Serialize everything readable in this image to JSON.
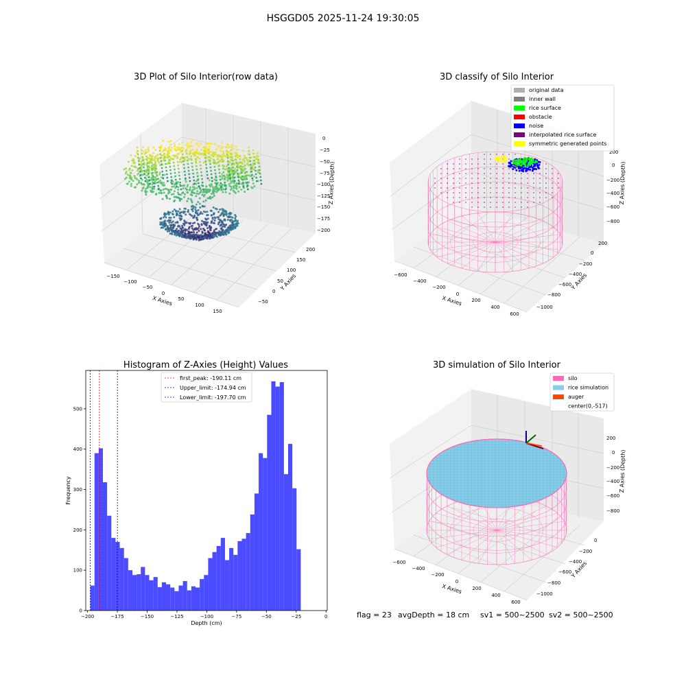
{
  "suptitle": "HSGGD05 2025-11-24 19:30:05",
  "footer": {
    "flag": "flag = 23",
    "avg_depth": "avgDepth = 18 cm",
    "sv1": "sv1 = 500~2500",
    "sv2": "sv2 = 500~2500"
  },
  "colors": {
    "hist_bar": "#4b4bff",
    "first_peak": "#ff0000",
    "limit_line": "#0000aa",
    "silo": "#ff69b4",
    "rice_sim": "#87ceeb",
    "auger": "#ff4500",
    "noise": "#0000ff",
    "rice_surface": "#00ff00",
    "obstacle": "#ff0000",
    "interpolated": "#800080",
    "symmetric": "#ffff00",
    "inner_wall": "#808080",
    "original": "#b0b0b0"
  },
  "chart_data": [
    {
      "type": "scatter",
      "title": "3D Plot of Silo Interior(row data)",
      "xlabel": "X Axies",
      "ylabel": "Y Axies",
      "zlabel": "Z Axies (Depth)",
      "x_ticks": [
        "−150",
        "−100",
        "−50",
        "0",
        "50",
        "100",
        "150"
      ],
      "y_ticks": [
        "−50",
        "0",
        "50",
        "100",
        "150",
        "200"
      ],
      "z_ticks": [
        "0",
        "−25",
        "−50",
        "−75",
        "−100",
        "−125",
        "−150",
        "−175",
        "−200"
      ],
      "xlim": [
        -175,
        175
      ],
      "ylim": [
        -75,
        225
      ],
      "zlim": [
        -205,
        0
      ],
      "colormap": "viridis"
    },
    {
      "type": "scatter",
      "title": "3D classify of Silo Interior",
      "xlabel": "X Axies",
      "ylabel": "Y Axies",
      "zlabel": "Z Axies (Depth)",
      "x_ticks": [
        "−600",
        "−400",
        "−200",
        "0",
        "200",
        "400",
        "600"
      ],
      "y_ticks": [
        "200",
        "0",
        "−200",
        "−400",
        "−600",
        "−800",
        "−1000"
      ],
      "z_ticks": [
        "200",
        "0",
        "−200",
        "−400",
        "−600",
        "−800"
      ],
      "legend": [
        {
          "label": "original data",
          "color": "#b0b0b0"
        },
        {
          "label": "inner wall",
          "color": "#808080"
        },
        {
          "label": "rice surface",
          "color": "#00ff00"
        },
        {
          "label": "obstacle",
          "color": "#ff0000"
        },
        {
          "label": "noise",
          "color": "#0000ff"
        },
        {
          "label": "interpolated rice surface",
          "color": "#800080"
        },
        {
          "label": "symmetric generated points",
          "color": "#ffff00"
        }
      ],
      "legend_placement": "top-right"
    },
    {
      "type": "bar",
      "title": "Histogram of Z-Axies (Height) Values",
      "xlabel": "Depth (cm)",
      "ylabel": "Frequency",
      "xlim": [
        -201.5,
        1
      ],
      "ylim": [
        0,
        595
      ],
      "x_ticks": [
        -200,
        -175,
        -150,
        -125,
        -100,
        -75,
        -50,
        -25,
        0
      ],
      "y_ticks": [
        0,
        100,
        200,
        300,
        400,
        500
      ],
      "bin_start": -197.7,
      "bin_width": 3.53,
      "values": [
        62,
        390,
        402,
        318,
        235,
        180,
        170,
        155,
        130,
        100,
        88,
        90,
        108,
        88,
        75,
        83,
        58,
        70,
        65,
        57,
        48,
        62,
        73,
        50,
        60,
        57,
        78,
        88,
        130,
        145,
        160,
        180,
        125,
        155,
        138,
        172,
        178,
        192,
        238,
        290,
        390,
        378,
        485,
        568,
        555,
        566,
        338,
        413,
        303,
        152
      ],
      "vlines": [
        {
          "label": "first_peak: -190.11 cm",
          "x": -190.11,
          "color": "#ff0000"
        },
        {
          "label": "Upper_limit: -174.94 cm",
          "x": -174.94,
          "color": "#0000aa"
        },
        {
          "label": "Lower_limit: -197.70 cm",
          "x": -197.7,
          "color": "#0000aa"
        }
      ],
      "legend_placement": "top-center"
    },
    {
      "type": "scatter",
      "title": "3D simulation of Silo Interior",
      "xlabel": "X Axies",
      "ylabel": "Y Axies",
      "zlabel": "Z Axies (Depth)",
      "x_ticks": [
        "−600",
        "−400",
        "−200",
        "0",
        "200",
        "400",
        "600"
      ],
      "y_ticks": [
        "0",
        "−200",
        "−400",
        "−600",
        "−800",
        "−1000"
      ],
      "z_ticks": [
        "200",
        "0",
        "−200",
        "−400",
        "−600",
        "−800"
      ],
      "legend": [
        {
          "label": "silo",
          "color": "#ff69b4"
        },
        {
          "label": "rice simulation",
          "color": "#87ceeb"
        },
        {
          "label": "auger",
          "color": "#ff4500"
        },
        {
          "label": "center(0,-517)",
          "color": ""
        }
      ],
      "legend_placement": "top-right"
    }
  ]
}
